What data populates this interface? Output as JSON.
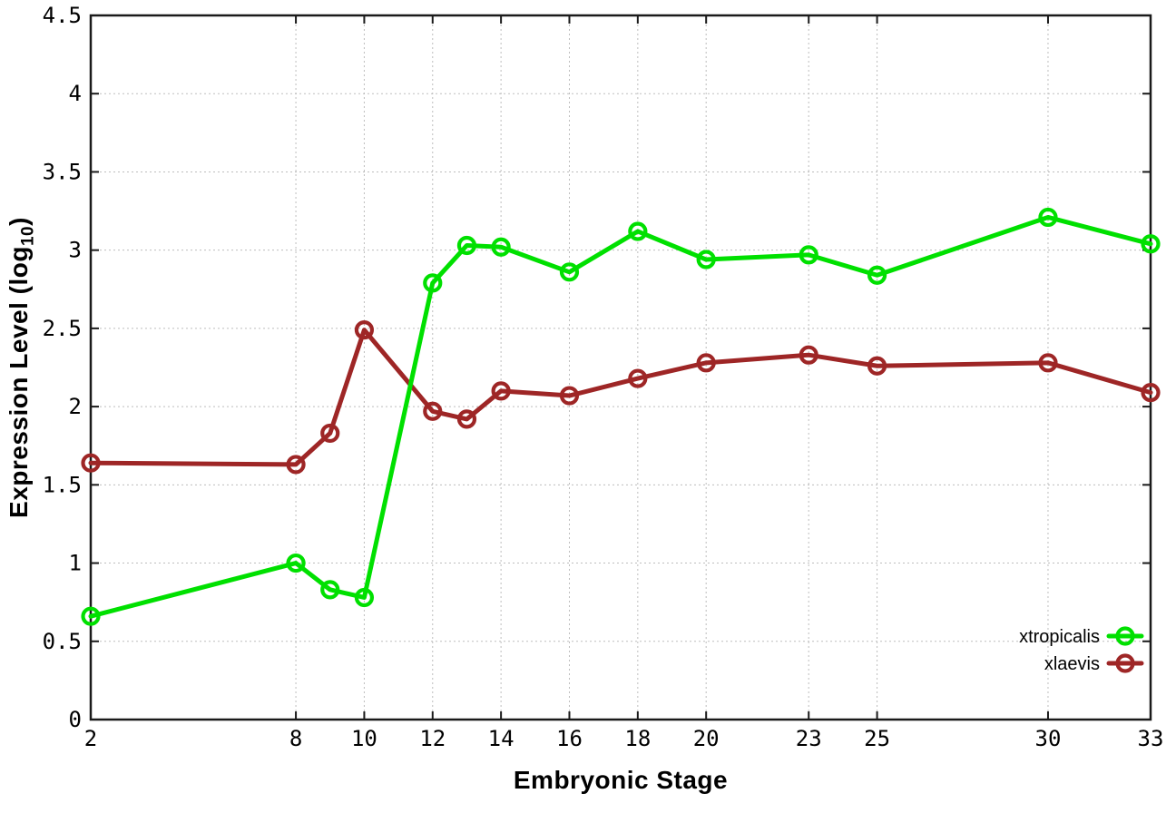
{
  "figure": {
    "background_color": "#ffffff",
    "axis_color": "#1a1a1a",
    "grid_color": "#bdbdbd",
    "text_color": "#000000"
  },
  "chart_data": {
    "type": "line",
    "title": "",
    "xlabel": "Embryonic Stage",
    "ylabel": "Expression Level (log10)",
    "ylabel_parts": {
      "prefix": "Expression Level (log",
      "subscript": "10",
      "suffix": ")"
    },
    "xlim": [
      2,
      33
    ],
    "ylim": [
      0,
      4.5
    ],
    "xticks": [
      2,
      8,
      10,
      12,
      14,
      16,
      18,
      20,
      23,
      25,
      30,
      33
    ],
    "xtick_labels": [
      "2",
      "8",
      "10",
      "12",
      "14",
      "16",
      "18",
      "20",
      "23",
      "25",
      "30",
      "33"
    ],
    "yticks": [
      0,
      0.5,
      1,
      1.5,
      2,
      2.5,
      3,
      3.5,
      4,
      4.5
    ],
    "ytick_labels": [
      "0",
      "0.5",
      "1",
      "1.5",
      "2",
      "2.5",
      "3",
      "3.5",
      "4",
      "4.5"
    ],
    "grid": true,
    "legend_position": "inside-bottom-right",
    "marker_style": "open-circle",
    "x": [
      2,
      8,
      9,
      10,
      12,
      13,
      14,
      16,
      18,
      20,
      23,
      25,
      30,
      33
    ],
    "series": [
      {
        "name": "xtropicalis",
        "color": "#00e000",
        "values": [
          0.66,
          1.0,
          0.83,
          0.78,
          2.79,
          3.03,
          3.02,
          2.86,
          3.12,
          2.94,
          2.97,
          2.84,
          3.21,
          3.04
        ]
      },
      {
        "name": "xlaevis",
        "color": "#9e2626",
        "values": [
          1.64,
          1.63,
          1.83,
          2.49,
          1.97,
          1.92,
          2.1,
          2.07,
          2.18,
          2.28,
          2.33,
          2.26,
          2.28,
          2.09
        ]
      }
    ]
  }
}
